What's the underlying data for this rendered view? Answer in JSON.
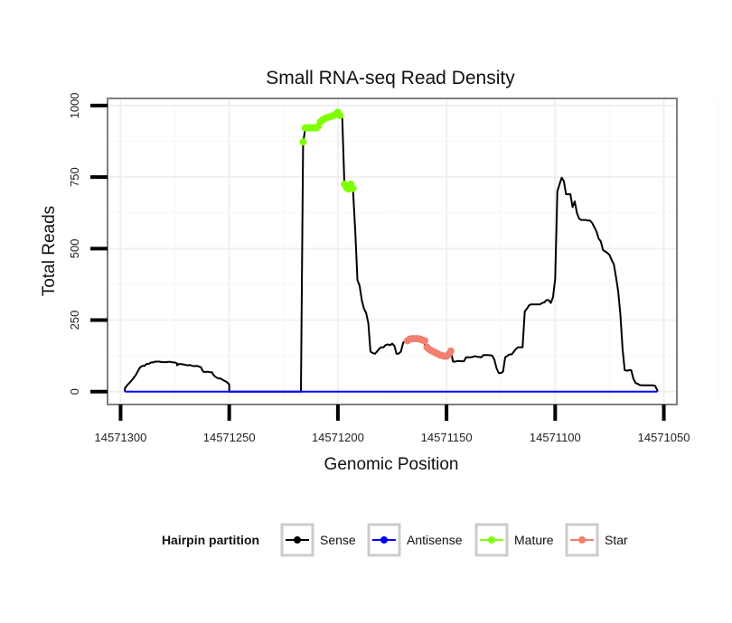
{
  "chart_data": {
    "type": "line",
    "title": "Small RNA-seq Read Density",
    "xlabel": "Genomic Position",
    "ylabel": "Total Reads",
    "x_reversed": true,
    "xlim": [
      14571306,
      14571044
    ],
    "ylim": [
      -45,
      1025
    ],
    "x_ticks": [
      14571300,
      14571250,
      14571200,
      14571150,
      14571100,
      14571050
    ],
    "x_tick_labels": [
      "14571300",
      "14571250",
      "14571200",
      "14571150",
      "14571100",
      "14571050"
    ],
    "y_ticks": [
      0,
      250,
      500,
      750,
      1000
    ],
    "y_tick_labels": [
      "0",
      "250",
      "500",
      "750",
      "1000"
    ],
    "grid": true,
    "legend": {
      "title": "Hairpin partition",
      "position": "bottom",
      "entries": [
        {
          "label": "Sense",
          "color": "#000000"
        },
        {
          "label": "Antisense",
          "color": "#0000ff"
        },
        {
          "label": "Mature",
          "color": "#7fff00"
        },
        {
          "label": "Star",
          "color": "#f08070"
        }
      ]
    },
    "series": [
      {
        "name": "Sense",
        "color": "#000000",
        "style": "line",
        "points": [
          [
            14571298,
            0
          ],
          [
            14571298,
            12
          ],
          [
            14571297,
            22
          ],
          [
            14571296,
            30
          ],
          [
            14571295,
            38
          ],
          [
            14571294,
            48
          ],
          [
            14571293,
            58
          ],
          [
            14571292,
            72
          ],
          [
            14571291,
            85
          ],
          [
            14571290,
            90
          ],
          [
            14571289,
            90
          ],
          [
            14571288,
            97
          ],
          [
            14571287,
            97
          ],
          [
            14571286,
            102
          ],
          [
            14571285,
            102
          ],
          [
            14571284,
            105
          ],
          [
            14571282,
            105
          ],
          [
            14571281,
            103
          ],
          [
            14571279,
            103
          ],
          [
            14571278,
            104
          ],
          [
            14571277,
            104
          ],
          [
            14571276,
            102
          ],
          [
            14571275,
            102
          ],
          [
            14571274,
            98
          ],
          [
            14571274,
            92
          ],
          [
            14571273,
            97
          ],
          [
            14571272,
            96
          ],
          [
            14571271,
            95
          ],
          [
            14571270,
            93
          ],
          [
            14571269,
            92
          ],
          [
            14571268,
            93
          ],
          [
            14571267,
            90
          ],
          [
            14571266,
            89
          ],
          [
            14571265,
            90
          ],
          [
            14571264,
            88
          ],
          [
            14571263,
            85
          ],
          [
            14571262,
            70
          ],
          [
            14571261,
            68
          ],
          [
            14571260,
            70
          ],
          [
            14571259,
            68
          ],
          [
            14571258,
            68
          ],
          [
            14571257,
            56
          ],
          [
            14571256,
            50
          ],
          [
            14571255,
            46
          ],
          [
            14571254,
            46
          ],
          [
            14571253,
            41
          ],
          [
            14571252,
            37
          ],
          [
            14571251,
            33
          ],
          [
            14571250,
            25
          ],
          [
            14571250,
            0
          ],
          [
            14571248,
            0
          ],
          [
            14571230,
            0
          ],
          [
            14571217,
            0
          ],
          [
            14571216,
            870
          ],
          [
            14571215,
            920
          ],
          [
            14571214,
            925
          ],
          [
            14571213,
            925
          ],
          [
            14571212,
            925
          ],
          [
            14571211,
            925
          ],
          [
            14571210,
            925
          ],
          [
            14571209,
            930
          ],
          [
            14571208,
            945
          ],
          [
            14571207,
            950
          ],
          [
            14571206,
            955
          ],
          [
            14571205,
            960
          ],
          [
            14571204,
            960
          ],
          [
            14571203,
            962
          ],
          [
            14571202,
            965
          ],
          [
            14571201,
            970
          ],
          [
            14571200,
            975
          ],
          [
            14571199,
            965
          ],
          [
            14571198,
            960
          ],
          [
            14571197,
            725
          ],
          [
            14571196,
            718
          ],
          [
            14571195,
            712
          ],
          [
            14571194,
            720
          ],
          [
            14571193,
            700
          ],
          [
            14571192,
            560
          ],
          [
            14571191,
            390
          ],
          [
            14571190,
            370
          ],
          [
            14571189,
            320
          ],
          [
            14571188,
            290
          ],
          [
            14571187,
            275
          ],
          [
            14571186,
            240
          ],
          [
            14571185,
            140
          ],
          [
            14571184,
            135
          ],
          [
            14571183,
            132
          ],
          [
            14571182,
            140
          ],
          [
            14571181,
            150
          ],
          [
            14571180,
            155
          ],
          [
            14571179,
            155
          ],
          [
            14571178,
            163
          ],
          [
            14571177,
            165
          ],
          [
            14571176,
            162
          ],
          [
            14571175,
            168
          ],
          [
            14571174,
            160
          ],
          [
            14571173,
            132
          ],
          [
            14571172,
            133
          ],
          [
            14571171,
            140
          ],
          [
            14571170,
            170
          ],
          [
            14571169,
            178
          ],
          [
            14571168,
            183
          ],
          [
            14571167,
            185
          ],
          [
            14571166,
            185
          ],
          [
            14571165,
            185
          ],
          [
            14571164,
            185
          ],
          [
            14571163,
            183
          ],
          [
            14571162,
            180
          ],
          [
            14571161,
            178
          ],
          [
            14571160,
            165
          ],
          [
            14571159,
            155
          ],
          [
            14571158,
            150
          ],
          [
            14571157,
            145
          ],
          [
            14571156,
            142
          ],
          [
            14571155,
            138
          ],
          [
            14571154,
            134
          ],
          [
            14571153,
            130
          ],
          [
            14571152,
            128
          ],
          [
            14571151,
            126
          ],
          [
            14571150,
            125
          ],
          [
            14571149,
            130
          ],
          [
            14571148,
            140
          ],
          [
            14571147,
            105
          ],
          [
            14571146,
            105
          ],
          [
            14571145,
            107
          ],
          [
            14571144,
            107
          ],
          [
            14571143,
            106
          ],
          [
            14571142,
            106
          ],
          [
            14571141,
            120
          ],
          [
            14571140,
            120
          ],
          [
            14571139,
            120
          ],
          [
            14571138,
            121
          ],
          [
            14571137,
            124
          ],
          [
            14571136,
            122
          ],
          [
            14571135,
            121
          ],
          [
            14571134,
            120
          ],
          [
            14571133,
            128
          ],
          [
            14571132,
            128
          ],
          [
            14571131,
            128
          ],
          [
            14571130,
            127
          ],
          [
            14571129,
            126
          ],
          [
            14571128,
            112
          ],
          [
            14571127,
            82
          ],
          [
            14571126,
            65
          ],
          [
            14571125,
            65
          ],
          [
            14571124,
            70
          ],
          [
            14571123,
            120
          ],
          [
            14571122,
            125
          ],
          [
            14571121,
            130
          ],
          [
            14571120,
            130
          ],
          [
            14571119,
            140
          ],
          [
            14571118,
            150
          ],
          [
            14571117,
            155
          ],
          [
            14571116,
            155
          ],
          [
            14571115,
            155
          ],
          [
            14571114,
            280
          ],
          [
            14571113,
            290
          ],
          [
            14571112,
            302
          ],
          [
            14571111,
            305
          ],
          [
            14571110,
            305
          ],
          [
            14571109,
            305
          ],
          [
            14571108,
            305
          ],
          [
            14571107,
            305
          ],
          [
            14571106,
            310
          ],
          [
            14571105,
            312
          ],
          [
            14571104,
            320
          ],
          [
            14571103,
            320
          ],
          [
            14571102,
            310
          ],
          [
            14571101,
            330
          ],
          [
            14571100,
            395
          ],
          [
            14571099,
            700
          ],
          [
            14571098,
            725
          ],
          [
            14571097,
            748
          ],
          [
            14571096,
            735
          ],
          [
            14571095,
            690
          ],
          [
            14571094,
            690
          ],
          [
            14571093,
            690
          ],
          [
            14571092,
            645
          ],
          [
            14571091,
            665
          ],
          [
            14571090,
            625
          ],
          [
            14571089,
            605
          ],
          [
            14571088,
            600
          ],
          [
            14571087,
            600
          ],
          [
            14571086,
            600
          ],
          [
            14571085,
            598
          ],
          [
            14571084,
            598
          ],
          [
            14571083,
            590
          ],
          [
            14571082,
            575
          ],
          [
            14571081,
            560
          ],
          [
            14571080,
            535
          ],
          [
            14571079,
            525
          ],
          [
            14571078,
            495
          ],
          [
            14571077,
            490
          ],
          [
            14571076,
            485
          ],
          [
            14571075,
            478
          ],
          [
            14571074,
            460
          ],
          [
            14571073,
            445
          ],
          [
            14571072,
            400
          ],
          [
            14571071,
            350
          ],
          [
            14571070,
            270
          ],
          [
            14571069,
            150
          ],
          [
            14571068,
            75
          ],
          [
            14571067,
            73
          ],
          [
            14571066,
            75
          ],
          [
            14571065,
            75
          ],
          [
            14571064,
            45
          ],
          [
            14571063,
            30
          ],
          [
            14571062,
            27
          ],
          [
            14571061,
            23
          ],
          [
            14571060,
            22
          ],
          [
            14571059,
            22
          ],
          [
            14571058,
            22
          ],
          [
            14571057,
            22
          ],
          [
            14571056,
            22
          ],
          [
            14571055,
            22
          ],
          [
            14571054,
            20
          ],
          [
            14571053,
            5
          ],
          [
            14571053,
            0
          ]
        ]
      },
      {
        "name": "Antisense",
        "color": "#0000ff",
        "style": "line",
        "points": [
          [
            14571298,
            0
          ],
          [
            14571053,
            0
          ]
        ]
      },
      {
        "name": "Mature",
        "color": "#7fff00",
        "style": "points",
        "points": [
          [
            14571216,
            873
          ],
          [
            14571215,
            922
          ],
          [
            14571214,
            922
          ],
          [
            14571213,
            922
          ],
          [
            14571212,
            922
          ],
          [
            14571211,
            922
          ],
          [
            14571210,
            922
          ],
          [
            14571209,
            928
          ],
          [
            14571208,
            943
          ],
          [
            14571207,
            950
          ],
          [
            14571206,
            955
          ],
          [
            14571205,
            958
          ],
          [
            14571204,
            960
          ],
          [
            14571203,
            962
          ],
          [
            14571202,
            965
          ],
          [
            14571201,
            970
          ],
          [
            14571200,
            977
          ],
          [
            14571199,
            965
          ],
          [
            14571197,
            725
          ],
          [
            14571196,
            712
          ],
          [
            14571195,
            708
          ],
          [
            14571194,
            725
          ],
          [
            14571193,
            710
          ]
        ]
      },
      {
        "name": "Star",
        "color": "#f08070",
        "style": "points",
        "points": [
          [
            14571168,
            178
          ],
          [
            14571167,
            183
          ],
          [
            14571166,
            185
          ],
          [
            14571165,
            185
          ],
          [
            14571164,
            185
          ],
          [
            14571163,
            185
          ],
          [
            14571162,
            183
          ],
          [
            14571161,
            180
          ],
          [
            14571160,
            178
          ],
          [
            14571159,
            155
          ],
          [
            14571158,
            148
          ],
          [
            14571157,
            143
          ],
          [
            14571156,
            140
          ],
          [
            14571155,
            136
          ],
          [
            14571154,
            132
          ],
          [
            14571153,
            128
          ],
          [
            14571152,
            126
          ],
          [
            14571151,
            124
          ],
          [
            14571150,
            124
          ],
          [
            14571149,
            130
          ],
          [
            14571148,
            142
          ]
        ]
      }
    ]
  }
}
